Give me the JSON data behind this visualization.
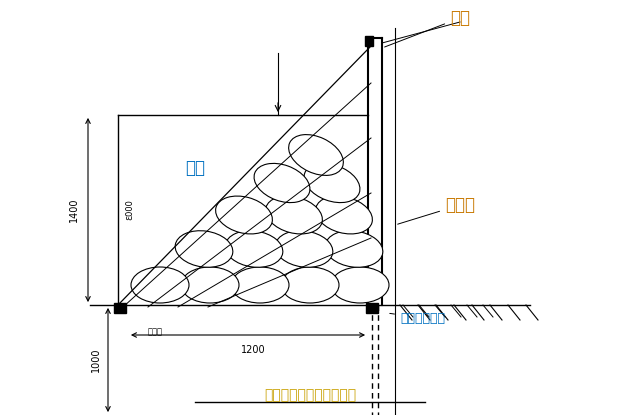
{
  "bg_color": "#ffffff",
  "title": "围墙墙体钉管沙袋加固图",
  "title_color": "#c8a000",
  "label_weidang": "围挡",
  "label_shudai": "沙袋",
  "label_linshuimian": "临水面",
  "label_gangguandaru": "钉管打入土体",
  "label_daji": "大楔子",
  "dim_1400": "1400",
  "dim_2000": "ℇ000",
  "dim_1200": "1200",
  "dim_1000": "1000",
  "line_color": "#000000",
  "annotation_color": "#c87800",
  "blue_color": "#0070c0"
}
